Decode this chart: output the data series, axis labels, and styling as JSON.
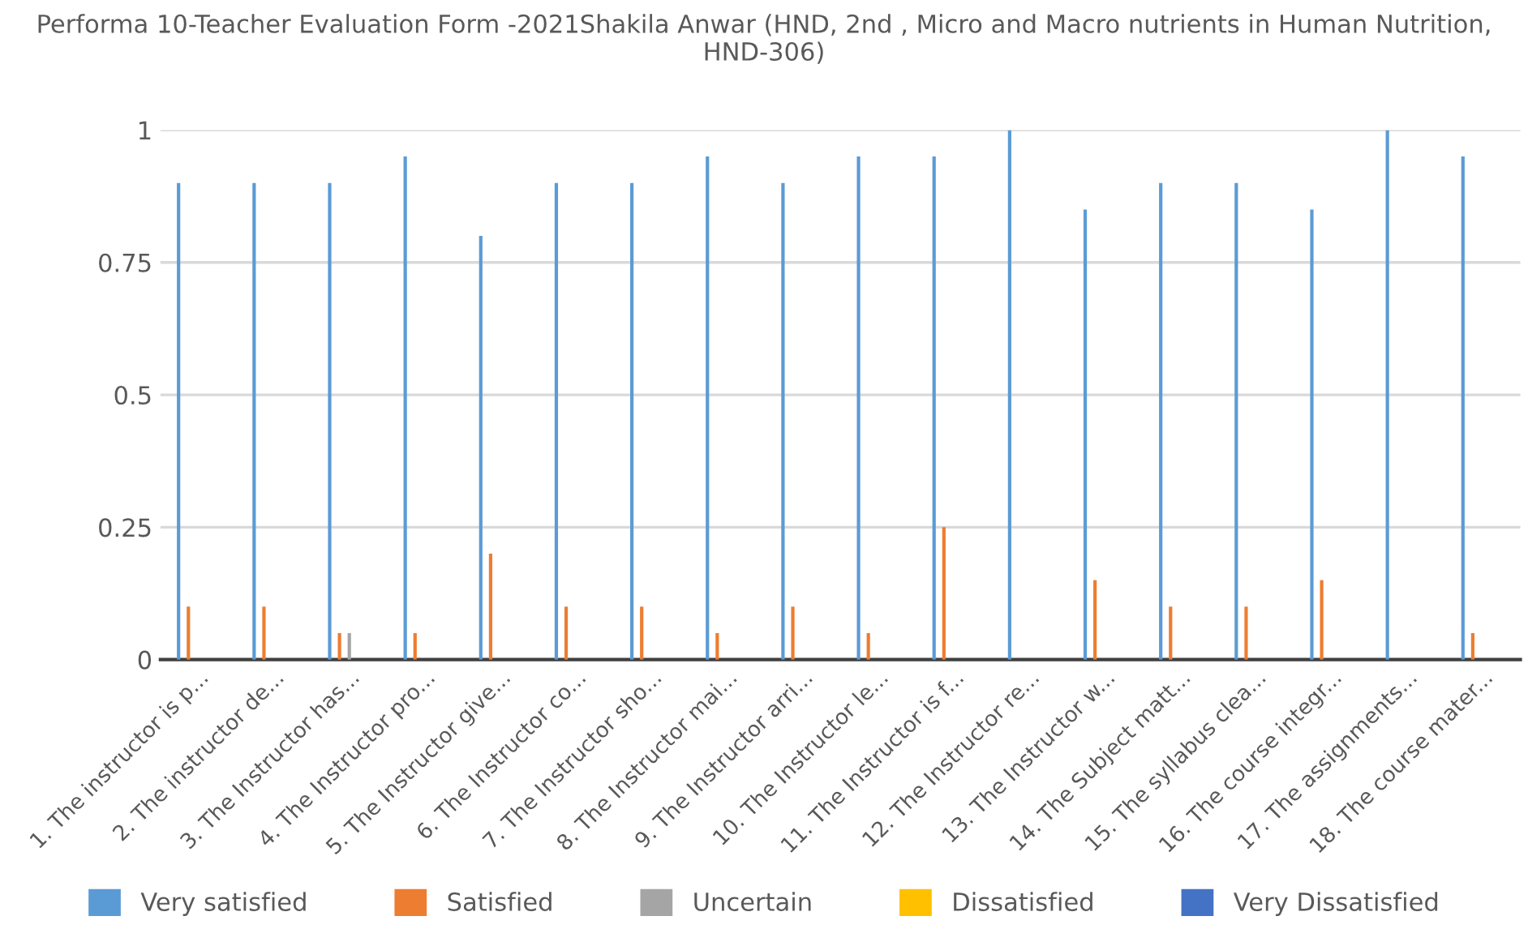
{
  "chart_data": {
    "type": "bar",
    "title": "Performa 10-Teacher Evaluation Form -2021Shakila Anwar (HND, 2nd , Micro and Macro nutrients in Human Nutrition, HND-306)",
    "categories": [
      "1. The instructor is p...",
      "2. The instructor de...",
      "3. The Instructor has...",
      "4. The Instructor pro...",
      "5. The Instructor give...",
      "6. The Instructor co...",
      "7. The Instructor sho...",
      "8. The Instructor mai...",
      "9. The Instructor arri...",
      "10. The Instructor le...",
      "11. The Instructor is f...",
      "12. The Instructor re...",
      "13. The Instructor w...",
      "14. The Subject matt...",
      "15. The syllabus clea...",
      "16. The course integr...",
      "17. The assignments...",
      "18. The course mater..."
    ],
    "series": [
      {
        "name": "Very satisfied",
        "color": "#5b9bd5",
        "values": [
          0.9,
          0.9,
          0.9,
          0.95,
          0.8,
          0.9,
          0.9,
          0.95,
          0.9,
          0.95,
          0.95,
          1,
          0.85,
          0.9,
          0.9,
          0.85,
          1,
          0.95
        ]
      },
      {
        "name": "Satisfied",
        "color": "#ed7d31",
        "values": [
          0.1,
          0.1,
          0.05,
          0.05,
          0.2,
          0.1,
          0.1,
          0.05,
          0.1,
          0.05,
          0.25,
          0,
          0.15,
          0.1,
          0.1,
          0.15,
          0,
          0.05
        ]
      },
      {
        "name": "Uncertain",
        "color": "#a5a5a5",
        "values": [
          0,
          0,
          0.05,
          0,
          0,
          0,
          0,
          0,
          0,
          0,
          0,
          0,
          0,
          0,
          0,
          0,
          0,
          0
        ]
      },
      {
        "name": "Dissatisfied",
        "color": "#ffc000",
        "values": [
          0,
          0,
          0,
          0,
          0,
          0,
          0,
          0,
          0,
          0,
          0,
          0,
          0,
          0,
          0,
          0,
          0,
          0
        ]
      },
      {
        "name": "Very Dissatisfied",
        "color": "#4472c4",
        "values": [
          0,
          0,
          0,
          0,
          0,
          0,
          0,
          0,
          0,
          0,
          0,
          0,
          0,
          0,
          0,
          0,
          0,
          0
        ]
      }
    ],
    "ylim": [
      0,
      1
    ],
    "yticks": [
      0,
      0.25,
      0.5,
      0.75,
      1
    ],
    "grid": "y",
    "legend": "bottom"
  }
}
